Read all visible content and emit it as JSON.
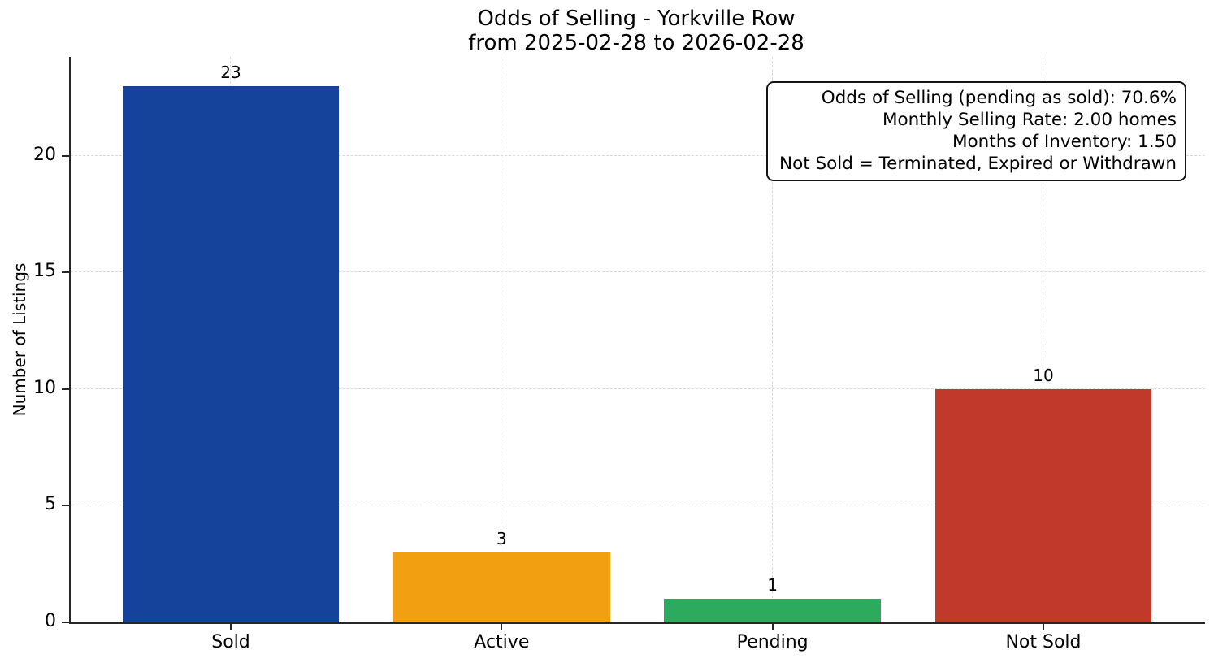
{
  "chart_data": {
    "type": "bar",
    "title": "Odds of Selling - Yorkville Row",
    "subtitle": "from 2025-02-28 to 2026-02-28",
    "categories": [
      "Sold",
      "Active",
      "Pending",
      "Not Sold"
    ],
    "values": [
      23,
      3,
      1,
      10
    ],
    "value_labels": [
      "23",
      "3",
      "1",
      "10"
    ],
    "bar_colors": [
      "#15429b",
      "#f2a012",
      "#2cab5f",
      "#c0392b"
    ],
    "xlabel": "",
    "ylabel": "Number of Listings",
    "yticks": [
      0,
      5,
      10,
      15,
      20
    ],
    "ylim": [
      0,
      24.25
    ],
    "xlim": [
      -0.591,
      3.597
    ],
    "grid": "dashed",
    "grid_color": "#d9d9d9",
    "axis_color": "#262626",
    "legend": "none",
    "annotation": {
      "position": "top-right",
      "lines": [
        "Odds of Selling (pending as sold): 70.6%",
        "Monthly Selling Rate: 2.00 homes",
        "Months of Inventory: 1.50",
        "Not Sold = Terminated, Expired or Withdrawn"
      ]
    }
  }
}
